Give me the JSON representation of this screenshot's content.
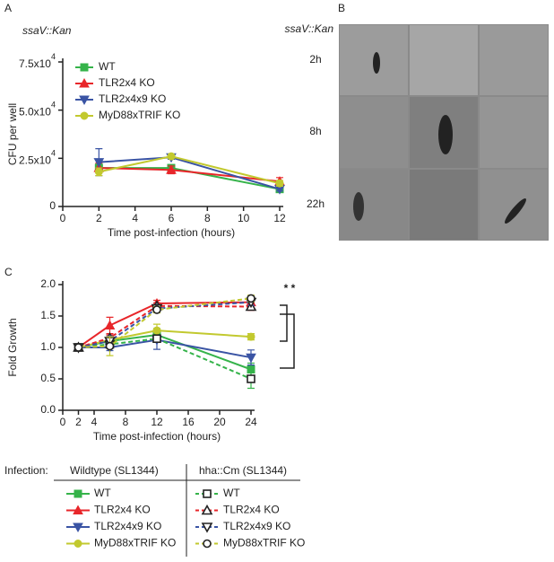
{
  "chart_data": [
    {
      "type": "line",
      "panel": "A",
      "title": "ssaV::Kan",
      "ylabel": "CFU per well",
      "xlabel": "Time post-infection (hours)",
      "xlim": [
        0,
        12
      ],
      "xticks": [
        0,
        2,
        4,
        6,
        8,
        10,
        12
      ],
      "ylim": [
        0,
        75000
      ],
      "yticks": [
        0,
        {
          "value": 25000,
          "label": "2.5x10",
          "sup": "4"
        },
        {
          "value": 50000,
          "label": "5.0x10",
          "sup": "4"
        },
        {
          "value": 75000,
          "label": "7.5x10",
          "sup": "4"
        }
      ],
      "x": [
        2,
        6,
        12
      ],
      "series": [
        {
          "name": "WT",
          "color": "#35b34a",
          "marker": "square",
          "values": [
            20000,
            20000,
            9000
          ],
          "errors": [
            2000,
            1500,
            1000
          ]
        },
        {
          "name": "TLR2x4 KO",
          "color": "#e8262a",
          "marker": "triangle",
          "values": [
            20000,
            19000,
            13000
          ],
          "errors": [
            2500,
            2000,
            2000
          ]
        },
        {
          "name": "TLR2x4x9 KO",
          "color": "#3a54a4",
          "marker": "triangle-down",
          "values": [
            23000,
            25500,
            9000
          ],
          "errors": [
            7000,
            1000,
            1000
          ]
        },
        {
          "name": "MyD88xTRIF KO",
          "color": "#c2c92f",
          "marker": "circle",
          "values": [
            18000,
            26000,
            12000
          ],
          "errors": [
            2000,
            1000,
            1500
          ]
        }
      ]
    },
    {
      "type": "line",
      "panel": "C",
      "ylabel": "Fold Growth",
      "xlabel": "Time post-infection (hours)",
      "xlim": [
        0,
        24
      ],
      "xticks": [
        0,
        2,
        4,
        8,
        12,
        16,
        20,
        24
      ],
      "ylim": [
        0,
        2.0
      ],
      "yticks": [
        {
          "value": 0,
          "label": "0.0"
        },
        0.5,
        {
          "value": 1,
          "label": "1.0"
        },
        1.5,
        {
          "value": 2,
          "label": "2.0"
        }
      ],
      "x": [
        2,
        6,
        12,
        24
      ],
      "annotation": "* *",
      "legend_title": "Infection:",
      "legend_columns": [
        "Wildtype (SL1344)",
        "hha::Cm (SL1344)"
      ],
      "series": [
        {
          "name": "WT",
          "color": "#35b34a",
          "marker": "square",
          "dashed": false,
          "values": [
            1.0,
            1.1,
            1.2,
            0.65
          ],
          "errors": [
            0.02,
            0.05,
            0.1,
            0.1
          ]
        },
        {
          "name": "TLR2x4 KO",
          "color": "#e8262a",
          "marker": "triangle",
          "dashed": false,
          "values": [
            1.0,
            1.35,
            1.7,
            1.72
          ],
          "errors": [
            0.02,
            0.13,
            0.05,
            0.05
          ]
        },
        {
          "name": "TLR2x4x9 KO",
          "color": "#3a54a4",
          "marker": "triangle-down",
          "dashed": false,
          "values": [
            1.0,
            1.0,
            1.12,
            0.84
          ],
          "errors": [
            0.02,
            0.05,
            0.15,
            0.12
          ]
        },
        {
          "name": "MyD88xTRIF KO",
          "color": "#c2c92f",
          "marker": "circle",
          "dashed": false,
          "values": [
            1.0,
            1.12,
            1.27,
            1.17
          ],
          "errors": [
            0.02,
            0.05,
            0.1,
            0.05
          ]
        },
        {
          "name": "WT",
          "color": "#35b34a",
          "marker": "square",
          "dashed": true,
          "values": [
            1.0,
            1.05,
            1.14,
            0.5
          ],
          "errors": [
            0.02,
            0.05,
            0.05,
            0.15
          ]
        },
        {
          "name": "TLR2x4 KO",
          "color": "#e8262a",
          "marker": "triangle",
          "dashed": true,
          "values": [
            1.0,
            1.15,
            1.66,
            1.65
          ],
          "errors": [
            0.02,
            0.05,
            0.05,
            0.06
          ]
        },
        {
          "name": "TLR2x4x9 KO",
          "color": "#3a54a4",
          "marker": "triangle-down",
          "dashed": true,
          "values": [
            1.0,
            1.1,
            1.62,
            1.72
          ],
          "errors": [
            0.02,
            0.08,
            0.06,
            0.05
          ]
        },
        {
          "name": "MyD88xTRIF KO",
          "color": "#c2c92f",
          "marker": "circle",
          "dashed": true,
          "values": [
            1.0,
            1.02,
            1.6,
            1.78
          ],
          "errors": [
            0.02,
            0.15,
            0.05,
            0.05
          ]
        }
      ]
    }
  ],
  "micrographs": {
    "panel": "B",
    "strain": "ssaV::Kan",
    "rows": [
      "2h",
      "8h",
      "22h"
    ]
  }
}
